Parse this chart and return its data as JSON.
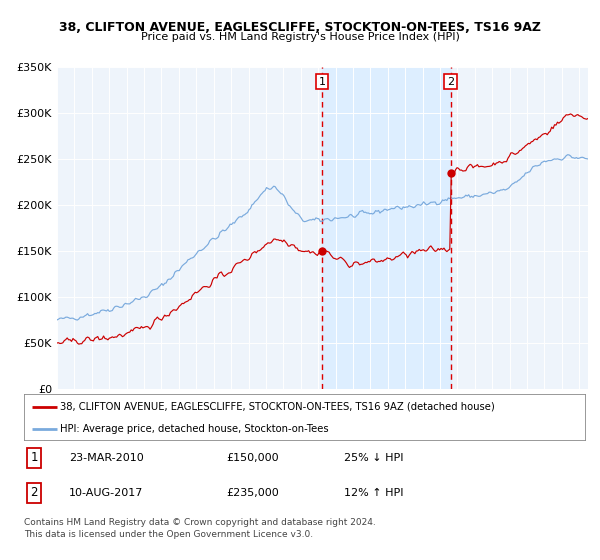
{
  "title1": "38, CLIFTON AVENUE, EAGLESCLIFFE, STOCKTON-ON-TEES, TS16 9AZ",
  "title2": "Price paid vs. HM Land Registry's House Price Index (HPI)",
  "ylim": [
    0,
    350000
  ],
  "xlim_start": 1995.0,
  "xlim_end": 2025.5,
  "yticks": [
    0,
    50000,
    100000,
    150000,
    200000,
    250000,
    300000,
    350000
  ],
  "ytick_labels": [
    "£0",
    "£50K",
    "£100K",
    "£150K",
    "£200K",
    "£250K",
    "£300K",
    "£350K"
  ],
  "transaction1_x": 2010.22,
  "transaction1_y": 150000,
  "transaction2_x": 2017.61,
  "transaction2_y": 235000,
  "vline_color": "#dd0000",
  "shade_color": "#ddeeff",
  "red_line_color": "#cc0000",
  "blue_line_color": "#7aaadd",
  "legend_label_red": "38, CLIFTON AVENUE, EAGLESCLIFFE, STOCKTON-ON-TEES, TS16 9AZ (detached house)",
  "legend_label_blue": "HPI: Average price, detached house, Stockton-on-Tees",
  "annotation1_label": "1",
  "annotation2_label": "2",
  "table_row1": [
    "1",
    "23-MAR-2010",
    "£150,000",
    "25% ↓ HPI"
  ],
  "table_row2": [
    "2",
    "10-AUG-2017",
    "£235,000",
    "12% ↑ HPI"
  ],
  "footnote": "Contains HM Land Registry data © Crown copyright and database right 2024.\nThis data is licensed under the Open Government Licence v3.0.",
  "background_chart": "#eef4fb",
  "background_fig": "#ffffff"
}
